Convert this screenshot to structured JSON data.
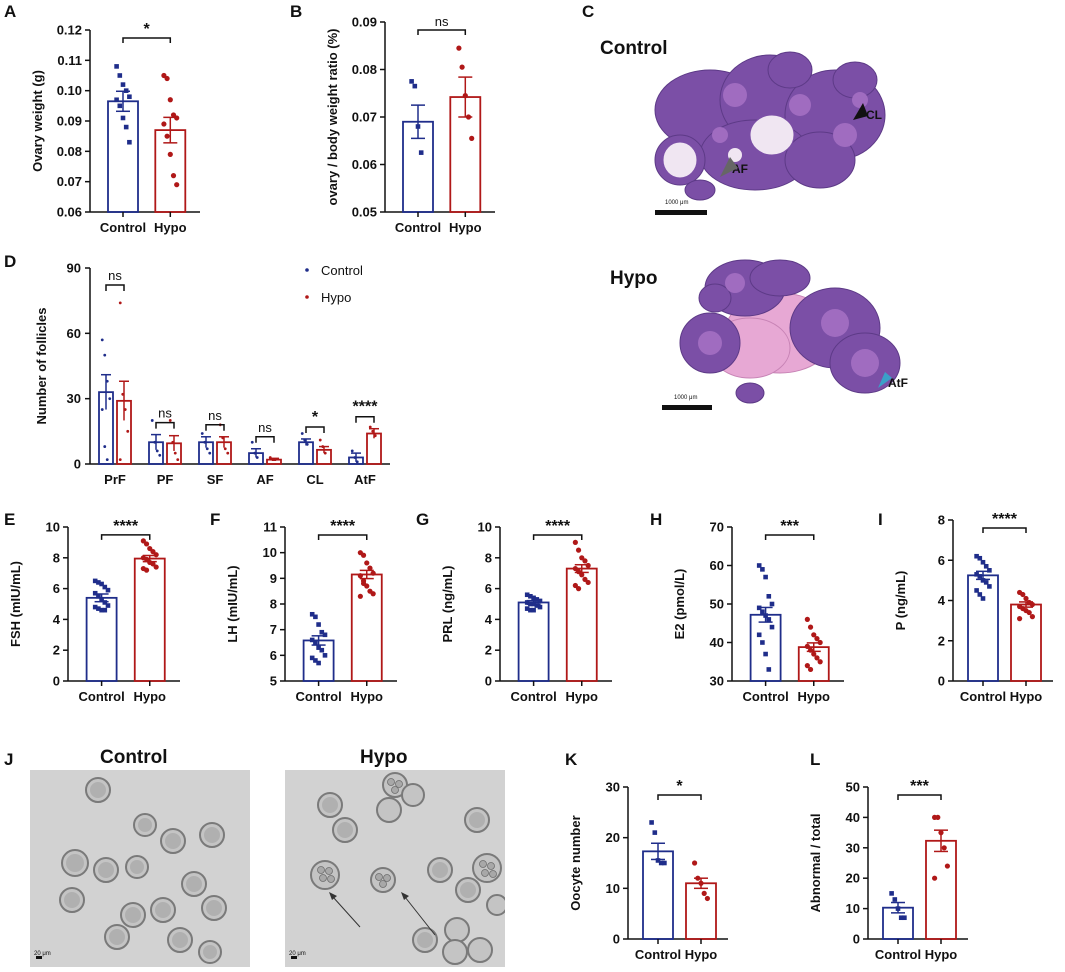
{
  "panel_letters": [
    "A",
    "B",
    "C",
    "D",
    "E",
    "F",
    "G",
    "H",
    "I",
    "J",
    "K",
    "L"
  ],
  "colors": {
    "control": "#1f2d8a",
    "hypo": "#b01818",
    "axis": "#111111",
    "tissue_dark": "#7b4fa6",
    "tissue_light": "#c79bd6",
    "tissue_pink": "#e7a8d4",
    "oocyte_bg": "#d2d2d2"
  },
  "histology": {
    "control_title": "Control",
    "hypo_title": "Hypo",
    "marker_cl": "CL",
    "marker_af": "AF",
    "marker_atf": "AtF",
    "scale_bar_text": "1000 μm",
    "marker_icons": [
      "arrowhead-icon",
      "arrowhead-icon",
      "arrowhead-icon"
    ]
  },
  "oocytes": {
    "control_title": "Control",
    "hypo_title": "Hypo",
    "scale_bar_text": "20 μm"
  },
  "chart_data": [
    {
      "id": "A",
      "type": "bar",
      "title": "",
      "xlabel": "",
      "ylabel": "Ovary weight (g)",
      "categories": [
        "Control",
        "Hypo"
      ],
      "values": [
        0.0965,
        0.087
      ],
      "errors": [
        0.0033,
        0.0042
      ],
      "ylim": [
        0.06,
        0.12
      ],
      "yticks": [
        "0.06",
        "0.07",
        "0.08",
        "0.09",
        "0.10",
        "0.11",
        "0.12"
      ],
      "significance": "*",
      "points": [
        [
          0.108,
          0.105,
          0.102,
          0.1,
          0.098,
          0.097,
          0.095,
          0.091,
          0.088,
          0.083
        ],
        [
          0.105,
          0.104,
          0.097,
          0.092,
          0.091,
          0.089,
          0.085,
          0.079,
          0.072,
          0.069
        ]
      ]
    },
    {
      "id": "B",
      "type": "bar",
      "title": "",
      "xlabel": "",
      "ylabel": "ovary / body weight ratio (%)",
      "categories": [
        "Control",
        "Hypo"
      ],
      "values": [
        0.069,
        0.0742
      ],
      "errors": [
        0.0035,
        0.0042
      ],
      "ylim": [
        0.05,
        0.09
      ],
      "yticks": [
        "0.05",
        "0.06",
        "0.07",
        "0.08",
        "0.09"
      ],
      "significance": "ns",
      "points": [
        [
          0.0775,
          0.0765,
          0.068,
          0.0625
        ],
        [
          0.0845,
          0.0805,
          0.0745,
          0.07,
          0.0655
        ]
      ]
    },
    {
      "id": "D",
      "type": "bar",
      "title": "",
      "xlabel": "",
      "ylabel": "Number of follicles",
      "categories": [
        "PrF",
        "PF",
        "SF",
        "AF",
        "CL",
        "AtF"
      ],
      "series": [
        {
          "name": "Control",
          "values": [
            33,
            10,
            10,
            5,
            10,
            3
          ],
          "errors": [
            8,
            3.5,
            2.5,
            2,
            1.5,
            2
          ]
        },
        {
          "name": "Hypo",
          "values": [
            29,
            9.5,
            10,
            2,
            6.5,
            14
          ],
          "errors": [
            9,
            3.5,
            2.5,
            0.6,
            1.5,
            2.2
          ]
        }
      ],
      "ylim": [
        0,
        90
      ],
      "yticks": [
        "0",
        "30",
        "60",
        "90"
      ],
      "significance": [
        "ns",
        "ns",
        "ns",
        "ns",
        "*",
        "****"
      ],
      "legend": [
        "Control",
        "Hypo"
      ],
      "points_control": [
        [
          57,
          50,
          38,
          30,
          25,
          8,
          2
        ],
        [
          20,
          10,
          6,
          4
        ],
        [
          14,
          10,
          7,
          5
        ],
        [
          10,
          5,
          3
        ],
        [
          14,
          11,
          9
        ],
        [
          6,
          3,
          1
        ]
      ],
      "points_hypo": [
        [
          74,
          32,
          25,
          15,
          2
        ],
        [
          20,
          10,
          5,
          2
        ],
        [
          18,
          12,
          7,
          5
        ],
        [
          3,
          2,
          2
        ],
        [
          11,
          8,
          5
        ],
        [
          17,
          15,
          13
        ]
      ]
    },
    {
      "id": "E",
      "type": "bar",
      "title": "",
      "xlabel": "",
      "ylabel": "FSH (mIU/mL)",
      "categories": [
        "Control",
        "Hypo"
      ],
      "values": [
        5.4,
        7.95
      ],
      "errors": [
        0.25,
        0.2
      ],
      "ylim": [
        0,
        10
      ],
      "yticks": [
        "0",
        "2",
        "4",
        "6",
        "8",
        "10"
      ],
      "significance": "****",
      "points": [
        [
          6.5,
          6.4,
          6.3,
          6.1,
          5.9,
          5.7,
          5.5,
          5.3,
          5.1,
          4.9,
          4.8,
          4.7,
          4.6,
          4.6
        ],
        [
          9.1,
          8.9,
          8.6,
          8.4,
          8.2,
          8.0,
          7.9,
          7.7,
          7.6,
          7.4,
          7.3,
          7.2
        ]
      ]
    },
    {
      "id": "F",
      "type": "bar",
      "title": "",
      "xlabel": "",
      "ylabel": "LH (mIU/mL)",
      "categories": [
        "Control",
        "Hypo"
      ],
      "values": [
        6.58,
        9.15
      ],
      "errors": [
        0.18,
        0.16
      ],
      "ylim": [
        5,
        11
      ],
      "yticks": [
        "5",
        "6",
        "7",
        "8",
        "9",
        "10",
        "11"
      ],
      "significance": "****",
      "points": [
        [
          7.6,
          7.5,
          7.2,
          6.9,
          6.8,
          6.6,
          6.5,
          6.3,
          6.2,
          6.0,
          5.9,
          5.8,
          5.7
        ],
        [
          10.0,
          9.9,
          9.6,
          9.4,
          9.2,
          9.1,
          8.9,
          8.7,
          8.5,
          8.4,
          8.3,
          8.8
        ]
      ]
    },
    {
      "id": "G",
      "type": "bar",
      "title": "",
      "xlabel": "",
      "ylabel": "PRL (ng/mL)",
      "categories": [
        "Control",
        "Hypo"
      ],
      "values": [
        5.1,
        7.3
      ],
      "errors": [
        0.12,
        0.25
      ],
      "ylim": [
        0,
        10
      ],
      "yticks": [
        "0",
        "2",
        "4",
        "6",
        "8",
        "10"
      ],
      "significance": "****",
      "points": [
        [
          5.6,
          5.5,
          5.4,
          5.3,
          5.2,
          5.1,
          5.0,
          5.0,
          4.9,
          4.8,
          4.7,
          4.6,
          4.6
        ],
        [
          9.0,
          8.5,
          8.0,
          7.8,
          7.5,
          7.3,
          7.1,
          6.9,
          6.6,
          6.4,
          6.2,
          6.0
        ]
      ]
    },
    {
      "id": "H",
      "type": "bar",
      "title": "",
      "xlabel": "",
      "ylabel": "E2 (pmol/L)",
      "categories": [
        "Control",
        "Hypo"
      ],
      "values": [
        47.2,
        38.8
      ],
      "errors": [
        1.9,
        1.1
      ],
      "ylim": [
        30,
        70
      ],
      "yticks": [
        "30",
        "40",
        "50",
        "60",
        "70"
      ],
      "significance": "***",
      "points": [
        [
          60,
          59,
          57,
          52,
          50,
          49,
          48,
          47,
          46,
          44,
          42,
          40,
          37,
          33
        ],
        [
          46,
          44,
          42,
          41,
          40,
          39,
          38,
          37,
          36,
          35,
          34,
          33
        ]
      ]
    },
    {
      "id": "I",
      "type": "bar",
      "title": "",
      "xlabel": "",
      "ylabel": "P (ng/mL)",
      "categories": [
        "Control",
        "Hypo"
      ],
      "values": [
        5.25,
        3.8
      ],
      "errors": [
        0.2,
        0.13
      ],
      "ylim": [
        0,
        8
      ],
      "yticks": [
        "0",
        "2",
        "4",
        "6",
        "8"
      ],
      "significance": "****",
      "points": [
        [
          6.2,
          6.1,
          5.9,
          5.7,
          5.5,
          5.3,
          5.2,
          5.0,
          4.9,
          4.7,
          4.5,
          4.3,
          4.1
        ],
        [
          4.4,
          4.3,
          4.1,
          3.9,
          3.8,
          3.7,
          3.6,
          3.5,
          3.4,
          3.2,
          3.1
        ]
      ]
    },
    {
      "id": "K",
      "type": "bar",
      "title": "",
      "xlabel": "",
      "ylabel": "Oocyte number",
      "categories": [
        "Control",
        "Hypo"
      ],
      "values": [
        17.3,
        11.0
      ],
      "errors": [
        1.6,
        1.0
      ],
      "ylim": [
        0,
        30
      ],
      "yticks": [
        "0",
        "10",
        "20",
        "30"
      ],
      "significance": "*",
      "points": [
        [
          23,
          21,
          15.5,
          15,
          15
        ],
        [
          15,
          12,
          11,
          9,
          8
        ]
      ]
    },
    {
      "id": "L",
      "type": "bar",
      "title": "",
      "xlabel": "",
      "ylabel": "Abnormal / total",
      "categories": [
        "Control",
        "Hypo"
      ],
      "values": [
        10.3,
        32.3
      ],
      "errors": [
        1.7,
        3.5
      ],
      "ylim": [
        0,
        50
      ],
      "yticks": [
        "0",
        "10",
        "20",
        "30",
        "40",
        "50"
      ],
      "significance": "***",
      "points": [
        [
          15,
          13,
          10,
          7,
          7
        ],
        [
          40,
          40,
          35,
          30,
          24,
          20
        ]
      ]
    }
  ]
}
